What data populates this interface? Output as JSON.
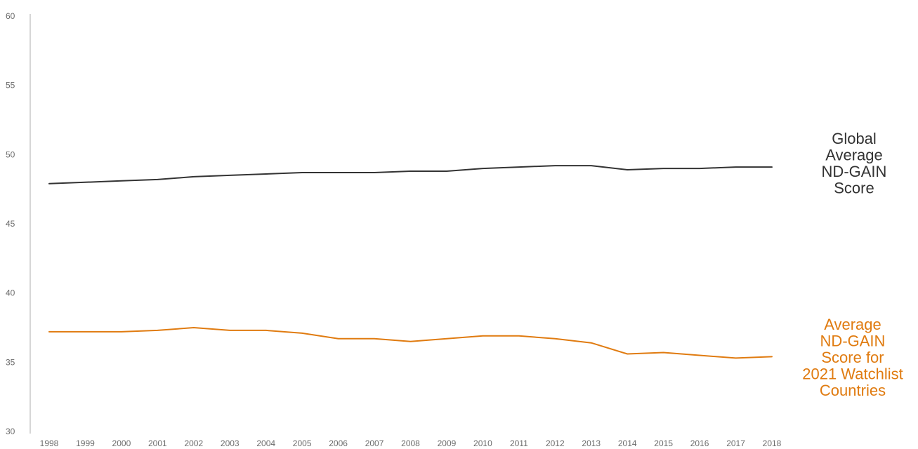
{
  "chart_data": {
    "type": "line",
    "title": "",
    "xlabel": "",
    "ylabel": "",
    "x": [
      1998,
      1999,
      2000,
      2001,
      2002,
      2003,
      2004,
      2005,
      2006,
      2007,
      2008,
      2009,
      2010,
      2011,
      2012,
      2013,
      2014,
      2015,
      2016,
      2017,
      2018
    ],
    "x_tick_labels": [
      "1998",
      "1999",
      "2000",
      "2001",
      "2002",
      "2003",
      "2004",
      "2005",
      "2006",
      "2007",
      "2008",
      "2009",
      "2010",
      "2011",
      "2012",
      "2013",
      "2014",
      "2015",
      "2016",
      "2017",
      "2018"
    ],
    "ylim": [
      30,
      60
    ],
    "y_ticks": [
      30,
      35,
      40,
      45,
      50,
      55,
      60
    ],
    "grid": false,
    "legend": "direct labels at right end of each line",
    "series": [
      {
        "name": "Global Average ND-GAIN Score",
        "label_lines": [
          "Global",
          "Average",
          "ND-GAIN",
          "Score"
        ],
        "color": "#333333",
        "values": [
          47.9,
          48.0,
          48.1,
          48.2,
          48.4,
          48.5,
          48.6,
          48.7,
          48.7,
          48.7,
          48.8,
          48.8,
          49.0,
          49.1,
          49.2,
          49.2,
          48.9,
          49.0,
          49.0,
          49.1,
          49.1
        ]
      },
      {
        "name": "Average ND-GAIN Score for 2021 Watchlist Countries",
        "label_lines": [
          "Average",
          "ND-GAIN",
          "Score for",
          "2021 Watchlist",
          "Countries"
        ],
        "color": "#e07b10",
        "values": [
          37.2,
          37.2,
          37.2,
          37.3,
          37.5,
          37.3,
          37.3,
          37.1,
          36.7,
          36.7,
          36.5,
          36.7,
          36.9,
          36.9,
          36.7,
          36.4,
          35.6,
          35.7,
          35.5,
          35.3,
          35.4
        ]
      }
    ]
  }
}
